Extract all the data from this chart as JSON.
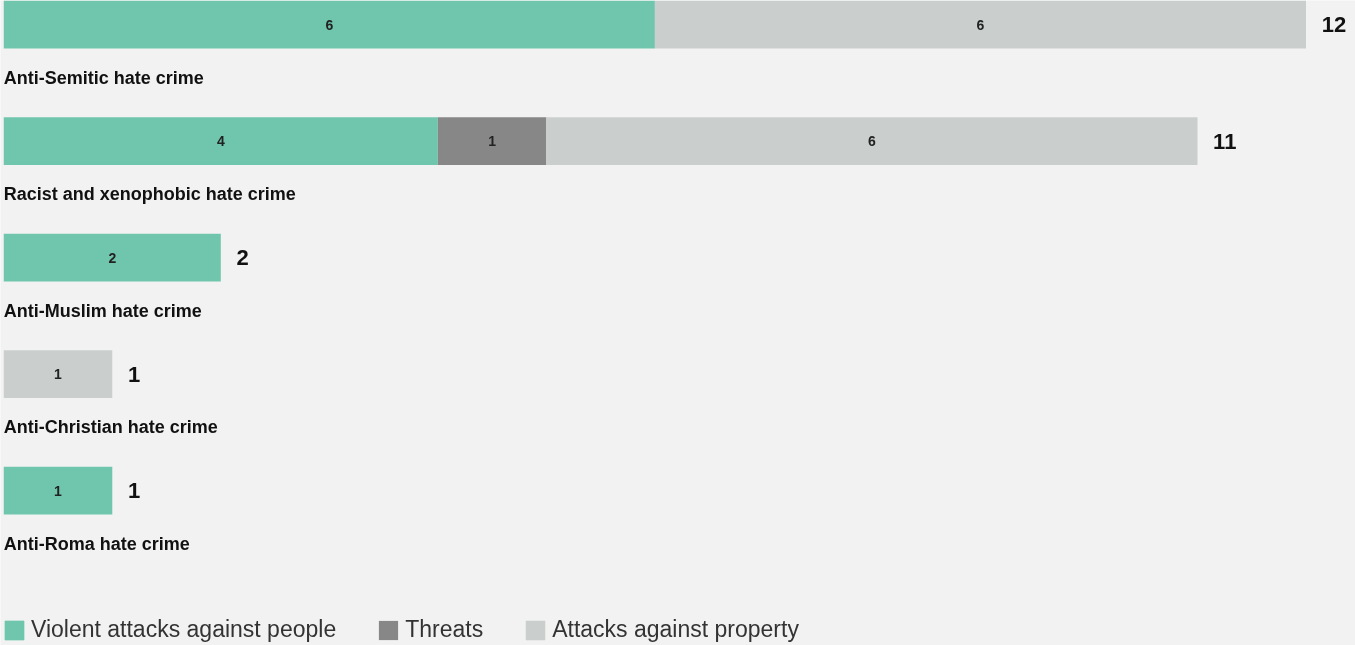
{
  "chart_data": {
    "type": "bar",
    "orientation": "horizontal",
    "stacked": true,
    "categories": [
      "Anti-Semitic hate crime",
      "Racist and xenophobic hate crime",
      "Anti-Muslim hate crime",
      "Anti-Christian hate crime",
      "Anti-Roma hate crime"
    ],
    "series": [
      {
        "name": "Violent attacks against people",
        "color": "#70c6ad",
        "values": [
          6,
          4,
          2,
          null,
          1
        ]
      },
      {
        "name": "Threats",
        "color": "#878787",
        "values": [
          null,
          1,
          null,
          null,
          null
        ]
      },
      {
        "name": "Attacks against property",
        "color": "#cacfcd",
        "values": [
          6,
          6,
          null,
          1,
          null
        ]
      }
    ],
    "data_labels": true,
    "totals": [
      "12",
      "11",
      "2",
      "1",
      "1"
    ],
    "legend": "bottom left",
    "grid": false
  }
}
